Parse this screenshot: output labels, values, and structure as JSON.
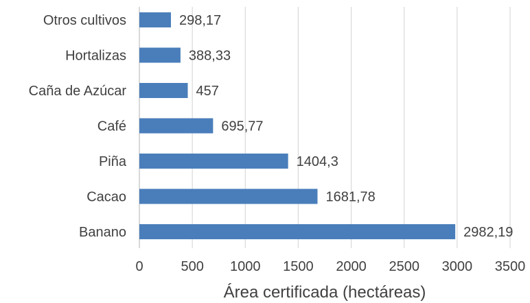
{
  "chart_data": {
    "type": "bar",
    "orientation": "horizontal",
    "categories": [
      "Banano",
      "Cacao",
      "Piña",
      "Café",
      "Caña de Azúcar",
      "Hortalizas",
      "Otros cultivos"
    ],
    "values": [
      2982.19,
      1681.78,
      1404.3,
      695.77,
      457,
      388.33,
      298.17
    ],
    "value_labels": [
      "2982,19",
      "1681,78",
      "1404,3",
      "695,77",
      "457",
      "388,33",
      "298,17"
    ],
    "x_ticks": [
      "0",
      "500",
      "1000",
      "1500",
      "2000",
      "2500",
      "3000",
      "3500"
    ],
    "xlabel": "Área certificada (hectáreas)",
    "ylabel": "",
    "xlim": [
      0,
      3500
    ],
    "grid": true,
    "legend": "none",
    "bar_color": "#4a7ebb"
  }
}
